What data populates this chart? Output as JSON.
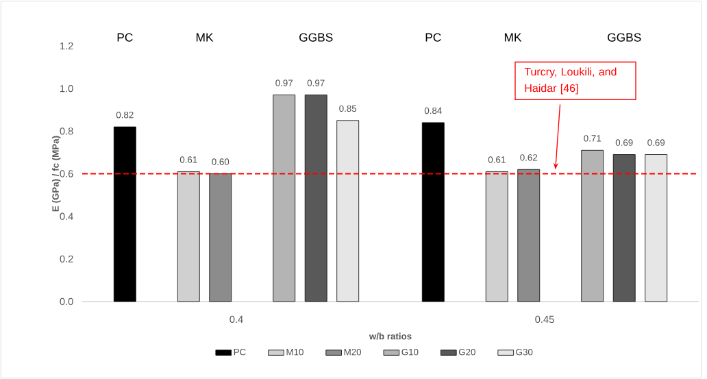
{
  "chart_data": {
    "type": "bar",
    "xlabel": "w/b ratios",
    "ylabel": "E (GPa) / fc (MPa)",
    "categories": [
      "0.4",
      "0.45"
    ],
    "series": [
      {
        "name": "PC",
        "color": "#000000",
        "values": [
          0.82,
          0.84
        ],
        "value_labels": [
          "0.82",
          "0.84"
        ]
      },
      {
        "name": "M10",
        "color": "#d0d0d0",
        "values": [
          0.61,
          0.61
        ],
        "value_labels": [
          "0.61",
          "0.61"
        ]
      },
      {
        "name": "M20",
        "color": "#8c8c8c",
        "values": [
          0.6,
          0.62
        ],
        "value_labels": [
          "0.60",
          "0.62"
        ]
      },
      {
        "name": "G10",
        "color": "#b4b4b4",
        "values": [
          0.97,
          0.71
        ],
        "value_labels": [
          "0.97",
          "0.71"
        ]
      },
      {
        "name": "G20",
        "color": "#595959",
        "values": [
          0.97,
          0.69
        ],
        "value_labels": [
          "0.97",
          "0.69"
        ]
      },
      {
        "name": "G30",
        "color": "#e6e6e6",
        "values": [
          0.85,
          0.69
        ],
        "value_labels": [
          "0.85",
          "0.69"
        ]
      }
    ],
    "ylim": [
      0,
      1.2
    ],
    "yticks": [
      {
        "value": 0,
        "label": "0.0"
      },
      0.2,
      0.4,
      0.6,
      0.8,
      {
        "value": 1.0,
        "label": "1.0"
      },
      1.2
    ],
    "ref_lines": [
      {
        "axis": "y",
        "value": 0.6,
        "label": "Turcry, Loukili, and Haidar [46]",
        "color": "#ff0000",
        "line_style": "dashed"
      }
    ],
    "annotations": [
      "PC",
      "MK",
      "GGBS",
      "PC",
      "MK",
      "GGBS"
    ],
    "legend": "bottom"
  }
}
